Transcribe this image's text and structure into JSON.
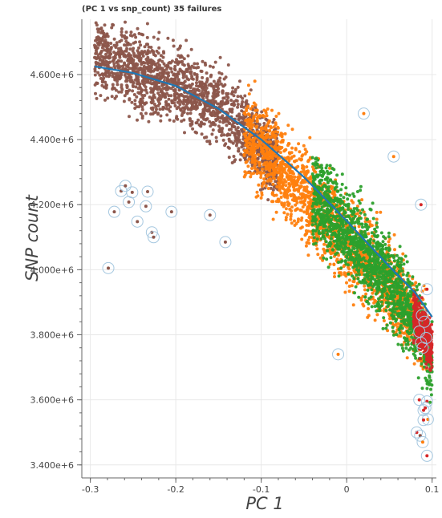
{
  "chart_data": {
    "type": "scatter",
    "title": "(PC 1 vs snp_count) 35 failures",
    "xlabel": "PC 1",
    "ylabel": "SNP count",
    "xlim": [
      -0.31,
      0.105
    ],
    "ylim": [
      3360000,
      4770000
    ],
    "grid": true,
    "x_ticks": [
      -0.3,
      -0.2,
      -0.1,
      0,
      0.1
    ],
    "x_tick_labels": [
      "-0.3",
      "-0.2",
      "-0.1",
      "0",
      "0.1"
    ],
    "y_ticks": [
      3400000,
      3600000,
      3800000,
      4000000,
      4200000,
      4400000,
      4600000
    ],
    "y_tick_labels": [
      "3.400e+6",
      "3.600e+6",
      "3.800e+6",
      "4.000e+6",
      "4.200e+6",
      "4.400e+6",
      "4.600e+6"
    ],
    "series": [
      {
        "color": "#8c564b",
        "point_count": 1800,
        "x_range": [
          -0.295,
          -0.08
        ],
        "trend": [
          [
            -0.295,
            4660000
          ],
          [
            -0.25,
            4610000
          ],
          [
            -0.2,
            4565000
          ],
          [
            -0.15,
            4500000
          ],
          [
            -0.12,
            4440000
          ],
          [
            -0.1,
            4380000
          ],
          [
            -0.08,
            4320000
          ]
        ],
        "spread_y": 55000
      },
      {
        "color": "#ff7f0e",
        "point_count": 2000,
        "x_range": [
          -0.12,
          0.095
        ],
        "trend": [
          [
            -0.12,
            4420000
          ],
          [
            -0.08,
            4320000
          ],
          [
            -0.05,
            4230000
          ],
          [
            -0.02,
            4150000
          ],
          [
            0.02,
            4030000
          ],
          [
            0.05,
            3950000
          ],
          [
            0.08,
            3850000
          ],
          [
            0.095,
            3780000
          ]
        ],
        "spread_y": 65000
      },
      {
        "color": "#2ca02c",
        "point_count": 1600,
        "x_range": [
          -0.04,
          0.1
        ],
        "trend": [
          [
            -0.04,
            4230000
          ],
          [
            0.0,
            4120000
          ],
          [
            0.03,
            4030000
          ],
          [
            0.06,
            3930000
          ],
          [
            0.085,
            3820000
          ],
          [
            0.1,
            3700000
          ]
        ],
        "spread_y": 65000
      },
      {
        "color": "#d62728",
        "point_count": 350,
        "x_range": [
          0.078,
          0.1
        ],
        "trend": [
          [
            0.078,
            3860000
          ],
          [
            0.09,
            3810000
          ],
          [
            0.1,
            3760000
          ]
        ],
        "spread_y": 35000
      }
    ],
    "fit_line": {
      "color": "#1f77b4",
      "points": [
        [
          -0.295,
          4625000
        ],
        [
          -0.25,
          4605000
        ],
        [
          -0.2,
          4565000
        ],
        [
          -0.15,
          4495000
        ],
        [
          -0.1,
          4400000
        ],
        [
          -0.05,
          4285000
        ],
        [
          0.0,
          4150000
        ],
        [
          0.05,
          4010000
        ],
        [
          0.08,
          3930000
        ],
        [
          0.1,
          3855000
        ]
      ]
    },
    "failures": {
      "count": 35,
      "ring_color": "#a6c8e0",
      "points": [
        {
          "x": -0.279,
          "y": 4005000,
          "color": "#8c564b"
        },
        {
          "x": -0.272,
          "y": 4178000,
          "color": "#8c564b"
        },
        {
          "x": -0.264,
          "y": 4242000,
          "color": "#8c564b"
        },
        {
          "x": -0.259,
          "y": 4258000,
          "color": "#8c564b"
        },
        {
          "x": -0.255,
          "y": 4208000,
          "color": "#8c564b"
        },
        {
          "x": -0.251,
          "y": 4238000,
          "color": "#8c564b"
        },
        {
          "x": -0.245,
          "y": 4148000,
          "color": "#8c564b"
        },
        {
          "x": -0.235,
          "y": 4195000,
          "color": "#8c564b"
        },
        {
          "x": -0.233,
          "y": 4240000,
          "color": "#8c564b"
        },
        {
          "x": -0.228,
          "y": 4115000,
          "color": "#8c564b"
        },
        {
          "x": -0.226,
          "y": 4100000,
          "color": "#8c564b"
        },
        {
          "x": -0.205,
          "y": 4178000,
          "color": "#8c564b"
        },
        {
          "x": -0.16,
          "y": 4168000,
          "color": "#8c564b"
        },
        {
          "x": -0.142,
          "y": 4085000,
          "color": "#8c564b"
        },
        {
          "x": -0.01,
          "y": 3740000,
          "color": "#ff7f0e"
        },
        {
          "x": 0.02,
          "y": 4480000,
          "color": "#ff7f0e"
        },
        {
          "x": 0.055,
          "y": 4348000,
          "color": "#ff7f0e"
        },
        {
          "x": 0.087,
          "y": 4200000,
          "color": "#d62728"
        },
        {
          "x": 0.094,
          "y": 3940000,
          "color": "#d62728"
        },
        {
          "x": 0.088,
          "y": 3860000,
          "color": "#d62728"
        },
        {
          "x": 0.091,
          "y": 3840000,
          "color": "#d62728"
        },
        {
          "x": 0.085,
          "y": 3810000,
          "color": "#d62728"
        },
        {
          "x": 0.093,
          "y": 3790000,
          "color": "#d62728"
        },
        {
          "x": 0.087,
          "y": 3775000,
          "color": "#d62728"
        },
        {
          "x": 0.089,
          "y": 3760000,
          "color": "#d62728"
        },
        {
          "x": 0.085,
          "y": 3600000,
          "color": "#d62728"
        },
        {
          "x": 0.094,
          "y": 3595000,
          "color": "#d62728"
        },
        {
          "x": 0.092,
          "y": 3575000,
          "color": "#d62728"
        },
        {
          "x": 0.09,
          "y": 3568000,
          "color": "#d62728"
        },
        {
          "x": 0.095,
          "y": 3540000,
          "color": "#ff7f0e"
        },
        {
          "x": 0.082,
          "y": 3500000,
          "color": "#d62728"
        },
        {
          "x": 0.086,
          "y": 3490000,
          "color": "#8c564b"
        },
        {
          "x": 0.089,
          "y": 3470000,
          "color": "#ff7f0e"
        },
        {
          "x": 0.094,
          "y": 3428000,
          "color": "#d62728"
        },
        {
          "x": 0.09,
          "y": 3538000,
          "color": "#d62728"
        }
      ]
    }
  }
}
